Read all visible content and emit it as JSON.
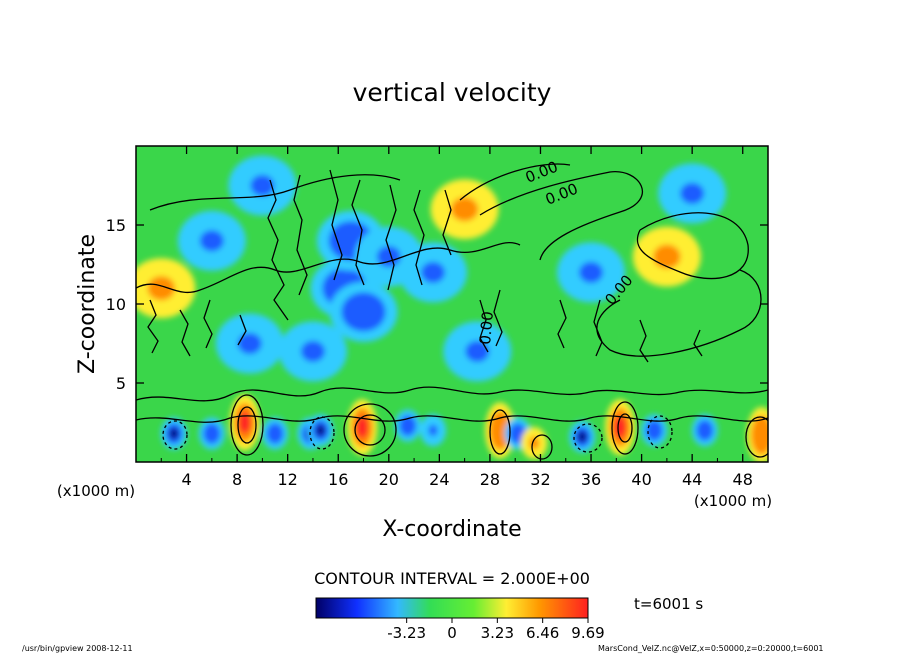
{
  "chart_data": {
    "type": "heatmap",
    "title": "vertical velocity",
    "xlabel": "X-coordinate",
    "ylabel": "Z-coordinate",
    "x_unit_left": "(x1000 m)",
    "x_unit_right": "(x1000 m)",
    "xlim": [
      0,
      50
    ],
    "ylim": [
      0,
      20
    ],
    "x_ticks": [
      4,
      8,
      12,
      16,
      20,
      24,
      28,
      32,
      36,
      40,
      44,
      48
    ],
    "y_ticks": [
      5,
      10,
      15
    ],
    "contour_interval_text": "CONTOUR INTERVAL = 2.000E+00",
    "time_text": "t=6001 s",
    "contour_labels": [
      "0.00",
      "0.00",
      "0.00",
      "0.00"
    ],
    "colorbar": {
      "range": [
        -9.69,
        9.69
      ],
      "tick_values": [
        -3.23,
        0,
        3.23,
        6.46,
        9.69
      ],
      "tick_labels": [
        "-3.23",
        "0",
        "3.23",
        "6.46",
        "9.69"
      ]
    },
    "cells": [
      {
        "x": 3,
        "z": 1.8,
        "w": -4.5
      },
      {
        "x": 6,
        "z": 1.8,
        "w": -3.8
      },
      {
        "x": 8.6,
        "z": 2.5,
        "w": 8.0
      },
      {
        "x": 11,
        "z": 1.8,
        "w": -3.5
      },
      {
        "x": 13.8,
        "z": 1.8,
        "w": -4.8
      },
      {
        "x": 14.6,
        "z": 2.0,
        "w": -4.2
      },
      {
        "x": 17.9,
        "z": 2.2,
        "w": 7.5
      },
      {
        "x": 21.5,
        "z": 2.3,
        "w": -3.0
      },
      {
        "x": 23.5,
        "z": 2.0,
        "w": -2.5
      },
      {
        "x": 28.8,
        "z": 2.0,
        "w": 6.5
      },
      {
        "x": 30.2,
        "z": 1.8,
        "w": -3.2
      },
      {
        "x": 31.5,
        "z": 1.2,
        "w": 3.0
      },
      {
        "x": 35.3,
        "z": 1.6,
        "w": -5.0
      },
      {
        "x": 38.3,
        "z": 2.2,
        "w": 8.2
      },
      {
        "x": 41,
        "z": 2.0,
        "w": -3.4
      },
      {
        "x": 45,
        "z": 2.0,
        "w": -2.8
      },
      {
        "x": 49.5,
        "z": 1.7,
        "w": 7.0
      },
      {
        "x": 16.5,
        "z": 11,
        "w": -3.5
      },
      {
        "x": 18,
        "z": 9.5,
        "w": -3.0
      },
      {
        "x": 17,
        "z": 14,
        "w": -2.8
      },
      {
        "x": 20,
        "z": 13,
        "w": -2.5
      },
      {
        "x": 23.5,
        "z": 12,
        "w": -2.2
      },
      {
        "x": 9,
        "z": 7.5,
        "w": -2.0
      },
      {
        "x": 27,
        "z": 7,
        "w": -1.8
      },
      {
        "x": 36,
        "z": 12,
        "w": -1.8
      },
      {
        "x": 44,
        "z": 17,
        "w": -1.5
      },
      {
        "x": 6,
        "z": 14,
        "w": -1.4
      },
      {
        "x": 10,
        "z": 17.5,
        "w": -1.5
      },
      {
        "x": 14,
        "z": 7,
        "w": -2.0
      },
      {
        "x": 42,
        "z": 13,
        "w": 1.2
      },
      {
        "x": 26,
        "z": 16,
        "w": 1.3
      },
      {
        "x": 2,
        "z": 11,
        "w": 1.2
      }
    ]
  },
  "footer": {
    "left_text": "/usr/bin/gpview 2008-12-11",
    "right_text": "MarsCond_VelZ.nc@VelZ,x=0:50000,z=0:20000,t=6001"
  },
  "colors": {
    "neg_strong": "#00007a",
    "neg": "#1f5cff",
    "neg_weak": "#33ccff",
    "zero": "#33dd33",
    "pos_weak": "#ffee33",
    "pos": "#ff8c00",
    "pos_strong": "#ff2020"
  }
}
